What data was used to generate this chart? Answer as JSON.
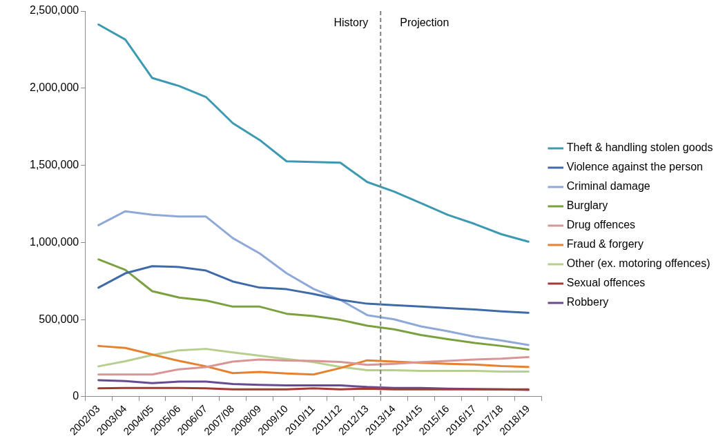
{
  "chart_data": {
    "type": "line",
    "categories": [
      "2002/03",
      "2003/04",
      "2004/05",
      "2005/06",
      "2006/07",
      "2007/08",
      "2008/09",
      "2009/10",
      "2010/11",
      "2011/12",
      "2012/13",
      "2013/14",
      "2014/15",
      "2015/16",
      "2016/17",
      "2017/18",
      "2018/19"
    ],
    "series": [
      {
        "name": "Theft & handling stolen goods",
        "color": "#3b9ab2",
        "values": [
          2413000,
          2315000,
          2066000,
          2014000,
          1943000,
          1773000,
          1664000,
          1526000,
          1522000,
          1517000,
          1392000,
          1330000,
          1255000,
          1179000,
          1120000,
          1053000,
          1005000
        ]
      },
      {
        "name": "Violence against the person",
        "color": "#3e6aa9",
        "values": [
          707000,
          800000,
          846000,
          841000,
          818000,
          747000,
          707000,
          697000,
          666000,
          628000,
          603000,
          594000,
          584000,
          575000,
          565000,
          553000,
          544000
        ]
      },
      {
        "name": "Criminal damage",
        "color": "#8ea9d8",
        "values": [
          1112000,
          1202000,
          1179000,
          1168000,
          1168000,
          1028000,
          929000,
          800000,
          699000,
          628000,
          529000,
          502000,
          456000,
          425000,
          389000,
          364000,
          335000
        ]
      },
      {
        "name": "Burglary",
        "color": "#7ba13f",
        "values": [
          890000,
          822000,
          684000,
          643000,
          624000,
          584000,
          584000,
          538000,
          523000,
          498000,
          460000,
          437000,
          400000,
          373000,
          349000,
          329000,
          306000
        ]
      },
      {
        "name": "Drug offences",
        "color": "#d99594",
        "values": [
          144000,
          144000,
          144000,
          178000,
          192000,
          228000,
          241000,
          234000,
          232000,
          226000,
          207000,
          213000,
          224000,
          232000,
          241000,
          247000,
          257000
        ]
      },
      {
        "name": "Fraud & forgery",
        "color": "#e5812f",
        "values": [
          329000,
          316000,
          274000,
          232000,
          197000,
          153000,
          161000,
          151000,
          144000,
          186000,
          236000,
          228000,
          220000,
          213000,
          209000,
          199000,
          193000
        ]
      },
      {
        "name": "Other (ex. motoring offences)",
        "color": "#b6cf8f",
        "values": [
          197000,
          230000,
          270000,
          301000,
          310000,
          287000,
          266000,
          245000,
          224000,
          193000,
          172000,
          172000,
          167000,
          167000,
          167000,
          163000,
          163000
        ]
      },
      {
        "name": "Sexual offences",
        "color": "#a33a36",
        "values": [
          54000,
          57000,
          57000,
          57000,
          54000,
          48000,
          48000,
          48000,
          54000,
          48000,
          52000,
          48000,
          48000,
          48000,
          48000,
          48000,
          48000
        ]
      },
      {
        "name": "Robbery",
        "color": "#6a4a8f",
        "values": [
          107000,
          101000,
          88000,
          98000,
          98000,
          82000,
          77000,
          73000,
          73000,
          73000,
          63000,
          57000,
          57000,
          52000,
          50000,
          48000,
          44000
        ]
      }
    ],
    "ylim": [
      0,
      2500000
    ],
    "yticks": [
      0,
      {
        "value": 500000,
        "label": "500,000"
      },
      {
        "value": 1000000,
        "label": "1,000,000"
      },
      {
        "value": 1500000,
        "label": "1,500,000"
      },
      {
        "value": 2000000,
        "label": "2,000,000"
      },
      {
        "value": 2500000,
        "label": "2,500,000"
      }
    ],
    "grid": false,
    "legend": "right",
    "marker": "none",
    "line_style": "solid",
    "annotations": [
      "History",
      "Projection"
    ]
  }
}
